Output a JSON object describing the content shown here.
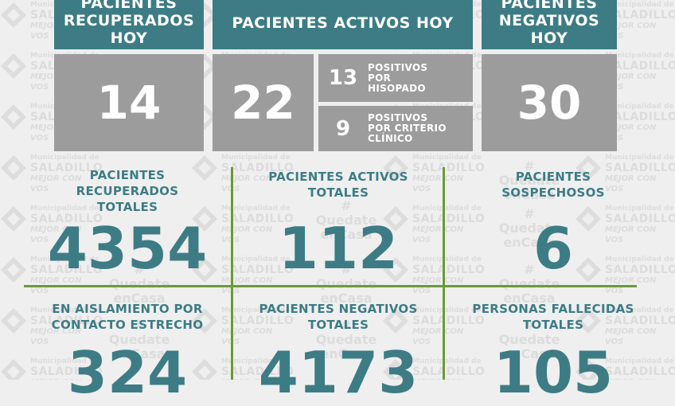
{
  "watermark": {
    "line1": "Municipalidad de",
    "line2": "SALADILLO",
    "line3": "MEJOR CON VOS",
    "hash": "#",
    "quedate": "Quedate",
    "encasa": "enCasa"
  },
  "top": {
    "recuperados_hoy": {
      "label": "PACIENTES RECUPERADOS HOY",
      "line1": "PACIENTES",
      "line2": "RECUPERADOS",
      "line3": "HOY",
      "value": "14"
    },
    "activos_hoy": {
      "label": "PACIENTES ACTIVOS HOY",
      "value": "22",
      "hisopado": {
        "value": "13",
        "line1": "POSITIVOS",
        "line2": "POR",
        "line3": "HISOPADO"
      },
      "clinico": {
        "value": "9",
        "line1": "POSITIVOS",
        "line2": "POR CRITERIO",
        "line3": "CLÍNICO"
      }
    },
    "negativos_hoy": {
      "line1": "PACIENTES",
      "line2": "NEGATIVOS",
      "line3": "HOY",
      "value": "30"
    }
  },
  "grid": {
    "recuperados_totales": {
      "line1": "PACIENTES",
      "line2": "RECUPERADOS",
      "line3": "TOTALES",
      "value": "4354"
    },
    "activos_totales": {
      "line1": "PACIENTES ACTIVOS",
      "line2": "TOTALES",
      "value": "112"
    },
    "sospechosos": {
      "line1": "PACIENTES",
      "line2": "SOSPECHOSOS",
      "value": "6"
    },
    "aislamiento": {
      "line1": "EN AISLAMIENTO POR",
      "line2": "CONTACTO ESTRECHO",
      "value": "324"
    },
    "negativos_totales": {
      "line1": "PACIENTES NEGATIVOS",
      "line2": "TOTALES",
      "value": "4173"
    },
    "fallecidas": {
      "line1": "PERSONAS FALLECIDAS",
      "line2": "TOTALES",
      "value": "105"
    }
  },
  "colors": {
    "teal": "#3d7c85",
    "gray": "#9c9c9c",
    "green": "#6b9a3c",
    "background": "#efefef"
  }
}
